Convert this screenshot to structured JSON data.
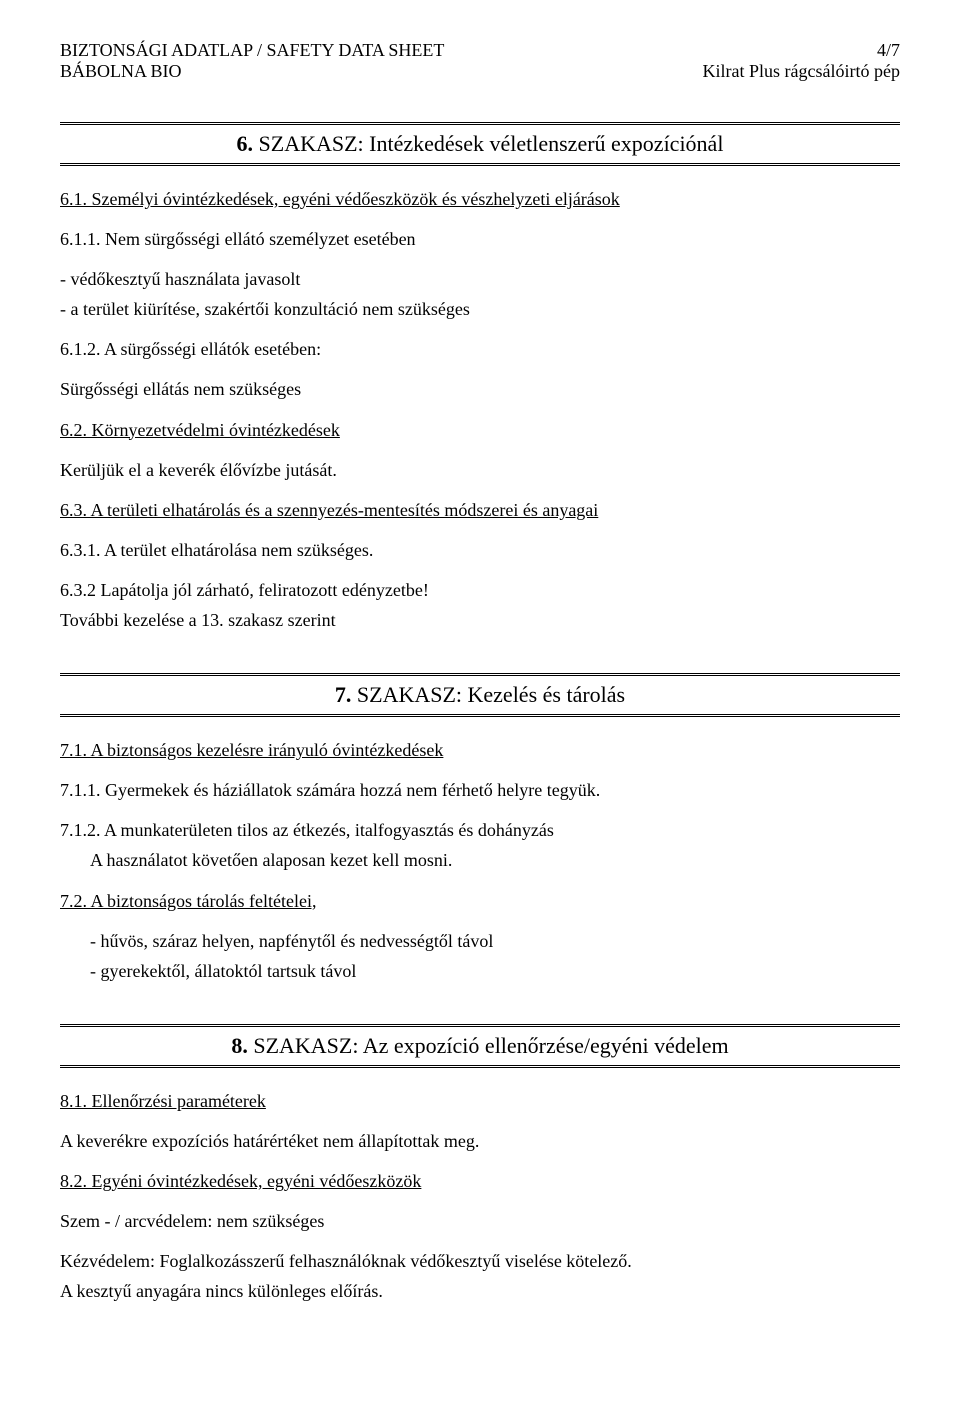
{
  "header": {
    "leftLine1": "BIZTONSÁGI ADATLAP / SAFETY DATA SHEET",
    "leftLine2": "BÁBOLNA BIO",
    "rightLine1": "4/7",
    "rightLine2": "Kilrat Plus rágcsálóirtó pép"
  },
  "section6": {
    "num": "6.",
    "title": "SZAKASZ: Intézkedések véletlenszerű expozíciónál",
    "s61": "6.1. Személyi óvintézkedések, egyéni védőeszközök és vészhelyzeti eljárások",
    "s611": "6.1.1. Nem sürgősségi ellátó személyzet esetében",
    "b1": "- védőkesztyű használata javasolt",
    "b2": "- a terület kiürítése, szakértői konzultáció nem szükséges",
    "s612": "6.1.2. A sürgősségi ellátók esetében:",
    "s612_body": "Sürgősségi ellátás nem szükséges",
    "s62": "6.2. Környezetvédelmi óvintézkedések",
    "s62_body": "Kerüljük el a keverék élővízbe jutását.",
    "s63": "6.3. A területi elhatárolás és a szennyezés-mentesítés módszerei és anyagai",
    "s631": "6.3.1. A terület elhatárolása nem szükséges.",
    "s632a": "6.3.2 Lapátolja jól zárható, feliratozott edényzetbe!",
    "s632b": "További kezelése a 13. szakasz szerint"
  },
  "section7": {
    "num": "7.",
    "title": "SZAKASZ: Kezelés és tárolás",
    "s71": "7.1. A biztonságos kezelésre irányuló óvintézkedések",
    "s711": "7.1.1. Gyermekek és háziállatok számára hozzá nem férhető helyre tegyük.",
    "s712a": "7.1.2. A munkaterületen tilos az étkezés, italfogyasztás és dohányzás",
    "s712b": "A használatot követően alaposan kezet kell mosni.",
    "s72": "7.2. A biztonságos tárolás feltételei,",
    "b1": "- hűvös, száraz helyen, napfénytől és nedvességtől távol",
    "b2": "- gyerekektől, állatoktól tartsuk távol"
  },
  "section8": {
    "num": "8.",
    "title": "SZAKASZ: Az expozíció ellenőrzése/egyéni védelem",
    "s81": "8.1. Ellenőrzési paraméterek",
    "s81_body": "A keverékre expozíciós határértéket nem állapítottak meg.",
    "s82": "8.2. Egyéni óvintézkedések, egyéni védőeszközök",
    "eye": "Szem - / arcvédelem: nem szükséges",
    "hand1": "Kézvédelem: Foglalkozásszerű felhasználóknak védőkesztyű viselése kötelező.",
    "hand2": "A kesztyű anyagára nincs különleges előírás."
  }
}
